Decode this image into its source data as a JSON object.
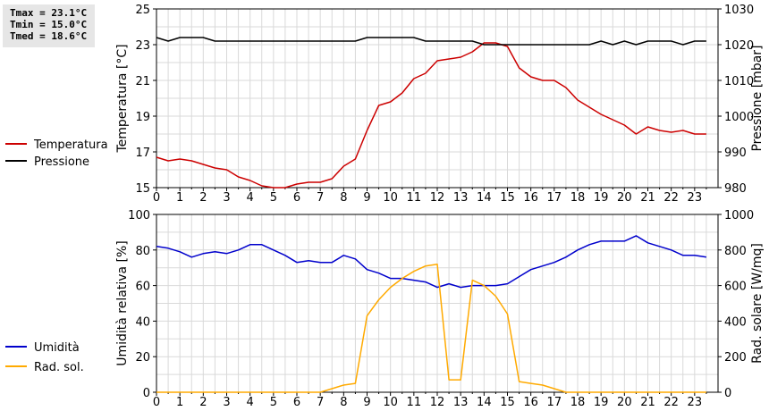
{
  "stats": {
    "tmax": "Tmax = 23.1°C",
    "tmin": "Tmin = 15.0°C",
    "tmed": "Tmed = 18.6°C"
  },
  "chart_data": [
    {
      "type": "line",
      "ylabel": "Temperatura [°C]",
      "y2label": "Pressione [mbar]",
      "xlim": [
        0,
        24
      ],
      "ylim": [
        15,
        25
      ],
      "y2lim": [
        980,
        1030
      ],
      "xticks": [
        "0",
        "1",
        "2",
        "3",
        "4",
        "5",
        "6",
        "7",
        "8",
        "9",
        "10",
        "11",
        "12",
        "13",
        "14",
        "15",
        "16",
        "17",
        "18",
        "19",
        "20",
        "21",
        "22",
        "23"
      ],
      "yticks": [
        "15",
        "17",
        "19",
        "21",
        "23",
        "25"
      ],
      "y2ticks": [
        "980",
        "990",
        "1000",
        "1010",
        "1020",
        "1030"
      ],
      "grid": true,
      "legend_position": "left",
      "series": [
        {
          "name": "Temperatura",
          "color": "#cc0000",
          "axis": "left",
          "x": [
            0,
            0.5,
            1,
            1.5,
            2,
            2.5,
            3,
            3.5,
            4,
            4.5,
            5,
            5.5,
            6,
            6.5,
            7,
            7.5,
            8,
            8.5,
            9,
            9.5,
            10,
            10.5,
            11,
            11.5,
            12,
            12.5,
            13,
            13.5,
            14,
            14.5,
            15,
            15.5,
            16,
            16.5,
            17,
            17.5,
            18,
            18.5,
            19,
            19.5,
            20,
            20.5,
            21,
            21.5,
            22,
            22.5,
            23,
            23.5
          ],
          "values": [
            16.7,
            16.5,
            16.6,
            16.5,
            16.3,
            16.1,
            16.0,
            15.6,
            15.4,
            15.1,
            15.0,
            15.0,
            15.2,
            15.3,
            15.3,
            15.5,
            16.2,
            16.6,
            18.2,
            19.6,
            19.8,
            20.3,
            21.1,
            21.4,
            22.1,
            22.2,
            22.3,
            22.6,
            23.1,
            23.1,
            22.9,
            21.7,
            21.2,
            21.0,
            21.0,
            20.6,
            19.9,
            19.5,
            19.1,
            18.8,
            18.5,
            18.0,
            18.4,
            18.2,
            18.1,
            18.2,
            18.0,
            18.0
          ]
        },
        {
          "name": "Pressione",
          "color": "#000000",
          "axis": "right",
          "x": [
            0,
            0.5,
            1,
            1.5,
            2,
            2.5,
            3,
            3.5,
            4,
            4.5,
            5,
            5.5,
            6,
            6.5,
            7,
            7.5,
            8,
            8.5,
            9,
            9.5,
            10,
            10.5,
            11,
            11.5,
            12,
            12.5,
            13,
            13.5,
            14,
            14.5,
            15,
            15.5,
            16,
            16.5,
            17,
            17.5,
            18,
            18.5,
            19,
            19.5,
            20,
            20.5,
            21,
            21.5,
            22,
            22.5,
            23,
            23.5
          ],
          "values": [
            1022,
            1021,
            1022,
            1022,
            1022,
            1021,
            1021,
            1021,
            1021,
            1021,
            1021,
            1021,
            1021,
            1021,
            1021,
            1021,
            1021,
            1021,
            1022,
            1022,
            1022,
            1022,
            1022,
            1021,
            1021,
            1021,
            1021,
            1021,
            1020,
            1020,
            1020,
            1020,
            1020,
            1020,
            1020,
            1020,
            1020,
            1020,
            1021,
            1020,
            1021,
            1020,
            1021,
            1021,
            1021,
            1020,
            1021,
            1021
          ]
        }
      ]
    },
    {
      "type": "line",
      "ylabel": "Umidità relativa [%]",
      "y2label": "Rad. solare [W/mq]",
      "xlim": [
        0,
        24
      ],
      "ylim": [
        0,
        100
      ],
      "y2lim": [
        0,
        1000
      ],
      "xticks": [
        "0",
        "1",
        "2",
        "3",
        "4",
        "5",
        "6",
        "7",
        "8",
        "9",
        "10",
        "11",
        "12",
        "13",
        "14",
        "15",
        "16",
        "17",
        "18",
        "19",
        "20",
        "21",
        "22",
        "23"
      ],
      "yticks": [
        "0",
        "20",
        "40",
        "60",
        "80",
        "100"
      ],
      "y2ticks": [
        "0",
        "200",
        "400",
        "600",
        "800",
        "1000"
      ],
      "grid": true,
      "legend_position": "left",
      "series": [
        {
          "name": "Umidità",
          "color": "#0000cc",
          "axis": "left",
          "x": [
            0,
            0.5,
            1,
            1.5,
            2,
            2.5,
            3,
            3.5,
            4,
            4.5,
            5,
            5.5,
            6,
            6.5,
            7,
            7.5,
            8,
            8.5,
            9,
            9.5,
            10,
            10.5,
            11,
            11.5,
            12,
            12.5,
            13,
            13.5,
            14,
            14.5,
            15,
            15.5,
            16,
            16.5,
            17,
            17.5,
            18,
            18.5,
            19,
            19.5,
            20,
            20.5,
            21,
            21.5,
            22,
            22.5,
            23,
            23.5
          ],
          "values": [
            82,
            81,
            79,
            76,
            78,
            79,
            78,
            80,
            83,
            83,
            80,
            77,
            73,
            74,
            73,
            73,
            77,
            75,
            69,
            67,
            64,
            64,
            63,
            62,
            59,
            61,
            59,
            60,
            60,
            60,
            61,
            65,
            69,
            71,
            73,
            76,
            80,
            83,
            85,
            85,
            85,
            88,
            84,
            82,
            80,
            77,
            77,
            76
          ]
        },
        {
          "name": "Rad. sol.",
          "color": "#ffaa00",
          "axis": "right",
          "x": [
            0,
            0.5,
            1,
            1.5,
            2,
            2.5,
            3,
            3.5,
            4,
            4.5,
            5,
            5.5,
            6,
            6.5,
            7,
            7.5,
            8,
            8.5,
            9,
            9.5,
            10,
            10.5,
            11,
            11.5,
            12,
            12.5,
            13,
            13.5,
            14,
            14.5,
            15,
            15.5,
            16,
            16.5,
            17,
            17.5,
            18,
            18.5,
            19,
            19.5,
            20,
            20.5,
            21,
            21.5,
            22,
            22.5,
            23,
            23.5
          ],
          "values": [
            0,
            0,
            0,
            0,
            0,
            0,
            0,
            0,
            0,
            0,
            0,
            0,
            0,
            0,
            0,
            20,
            40,
            50,
            430,
            520,
            590,
            640,
            680,
            710,
            720,
            70,
            70,
            630,
            600,
            540,
            440,
            60,
            50,
            40,
            20,
            0,
            0,
            0,
            0,
            0,
            0,
            0,
            0,
            0,
            0,
            0,
            0,
            0
          ]
        }
      ]
    }
  ]
}
